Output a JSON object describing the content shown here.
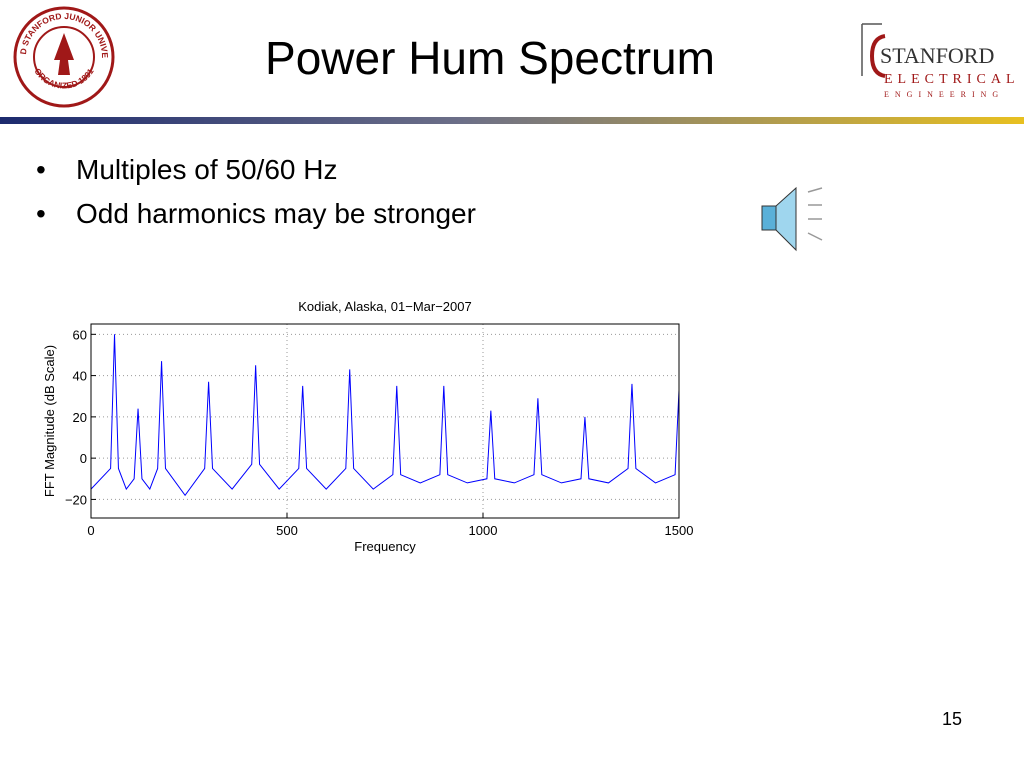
{
  "header": {
    "title": "Power Hum Spectrum",
    "seal": {
      "top": "LELAND STANFORD JUNIOR UNIVERSITY",
      "bottom": "ORGANIZED 1891"
    },
    "logo": {
      "line1": "STANFORD",
      "line2": "ELECTRICAL",
      "line3": "ENGINEERING"
    }
  },
  "bullets": [
    "Multiples of 50/60 Hz",
    "Odd harmonics may be stronger"
  ],
  "page_number": "15",
  "chart_data": {
    "type": "line",
    "title": "Kodiak, Alaska, 01−Mar−2007",
    "x_label": "Frequency",
    "y_label": "FFT Magnitude (dB Scale)",
    "x": [
      0,
      50,
      60,
      70,
      90,
      110,
      120,
      130,
      150,
      170,
      180,
      190,
      240,
      290,
      300,
      310,
      360,
      410,
      420,
      430,
      480,
      530,
      540,
      550,
      600,
      650,
      660,
      670,
      720,
      770,
      780,
      790,
      840,
      890,
      900,
      910,
      960,
      1010,
      1020,
      1030,
      1080,
      1130,
      1140,
      1150,
      1200,
      1250,
      1260,
      1270,
      1320,
      1370,
      1380,
      1390,
      1440,
      1490,
      1500
    ],
    "series": [
      {
        "color": "#0000ff",
        "values": [
          -15,
          -5,
          60,
          -5,
          -15,
          -10,
          24,
          -10,
          -15,
          -5,
          47,
          -5,
          -18,
          -5,
          37,
          -5,
          -15,
          -3,
          45,
          -3,
          -15,
          -5,
          35,
          -5,
          -15,
          -5,
          43,
          -5,
          -15,
          -8,
          35,
          -8,
          -12,
          -8,
          35,
          -8,
          -12,
          -10,
          23,
          -10,
          -12,
          -8,
          29,
          -8,
          -12,
          -10,
          20,
          -10,
          -12,
          -5,
          36,
          -5,
          -12,
          -8,
          33
        ]
      }
    ],
    "xlim": [
      0,
      1500
    ],
    "xticks": [
      0,
      500,
      1000,
      1500
    ],
    "ylim": [
      -29,
      65
    ],
    "yticks": [
      {
        "value": -20,
        "label": "−20"
      },
      0,
      20,
      40,
      60
    ],
    "grid": true
  }
}
